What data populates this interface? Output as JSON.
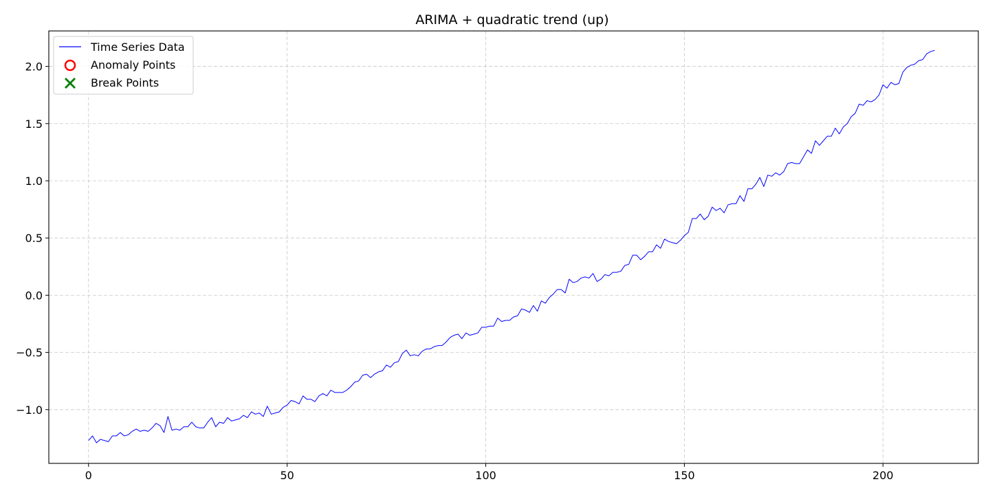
{
  "chart_data": {
    "type": "line",
    "title": "ARIMA + quadratic trend (up)",
    "xlabel": "",
    "ylabel": "",
    "xlim": [
      -10,
      224
    ],
    "ylim": [
      -1.47,
      2.31
    ],
    "x_ticks": [
      0,
      50,
      100,
      150,
      200
    ],
    "y_ticks": [
      -1.0,
      -0.5,
      0.0,
      0.5,
      1.0,
      1.5,
      2.0
    ],
    "x_tick_labels": [
      "0",
      "50",
      "100",
      "150",
      "200"
    ],
    "y_tick_labels": [
      "−1.0",
      "−0.5",
      "0.0",
      "0.5",
      "1.0",
      "1.5",
      "2.0"
    ],
    "grid": true,
    "legend_position": "top-left",
    "legend": [
      {
        "label": "Time Series Data",
        "marker": "line",
        "color": "#0000ff"
      },
      {
        "label": "Anomaly Points",
        "marker": "circle",
        "color": "#ff0000"
      },
      {
        "label": "Break Points",
        "marker": "x",
        "color": "#008000"
      }
    ],
    "series": [
      {
        "name": "Time Series Data",
        "color": "#0000ff",
        "x_start": 0,
        "x_step": 1,
        "values": [
          -1.27,
          -1.23,
          -1.29,
          -1.26,
          -1.27,
          -1.28,
          -1.23,
          -1.23,
          -1.2,
          -1.23,
          -1.22,
          -1.19,
          -1.17,
          -1.19,
          -1.18,
          -1.19,
          -1.16,
          -1.12,
          -1.14,
          -1.2,
          -1.06,
          -1.18,
          -1.17,
          -1.18,
          -1.15,
          -1.15,
          -1.11,
          -1.15,
          -1.16,
          -1.16,
          -1.11,
          -1.07,
          -1.15,
          -1.11,
          -1.12,
          -1.07,
          -1.1,
          -1.09,
          -1.08,
          -1.05,
          -1.07,
          -1.02,
          -1.04,
          -1.03,
          -1.06,
          -0.97,
          -1.04,
          -1.03,
          -1.02,
          -0.98,
          -0.96,
          -0.92,
          -0.93,
          -0.95,
          -0.88,
          -0.91,
          -0.91,
          -0.93,
          -0.88,
          -0.86,
          -0.88,
          -0.83,
          -0.85,
          -0.85,
          -0.85,
          -0.83,
          -0.8,
          -0.76,
          -0.75,
          -0.7,
          -0.69,
          -0.72,
          -0.69,
          -0.67,
          -0.66,
          -0.61,
          -0.63,
          -0.59,
          -0.58,
          -0.51,
          -0.48,
          -0.53,
          -0.52,
          -0.53,
          -0.49,
          -0.47,
          -0.47,
          -0.45,
          -0.44,
          -0.44,
          -0.41,
          -0.37,
          -0.35,
          -0.34,
          -0.38,
          -0.33,
          -0.35,
          -0.34,
          -0.33,
          -0.28,
          -0.28,
          -0.27,
          -0.27,
          -0.2,
          -0.23,
          -0.22,
          -0.22,
          -0.19,
          -0.18,
          -0.12,
          -0.13,
          -0.15,
          -0.09,
          -0.14,
          -0.05,
          -0.07,
          -0.02,
          0.01,
          0.05,
          0.05,
          0.02,
          0.14,
          0.11,
          0.12,
          0.15,
          0.16,
          0.15,
          0.19,
          0.12,
          0.14,
          0.18,
          0.17,
          0.2,
          0.2,
          0.21,
          0.26,
          0.27,
          0.35,
          0.35,
          0.31,
          0.34,
          0.38,
          0.38,
          0.44,
          0.41,
          0.49,
          0.47,
          0.46,
          0.45,
          0.48,
          0.52,
          0.55,
          0.67,
          0.67,
          0.71,
          0.66,
          0.69,
          0.77,
          0.74,
          0.76,
          0.72,
          0.79,
          0.8,
          0.8,
          0.87,
          0.82,
          0.93,
          0.93,
          0.97,
          1.03,
          0.95,
          1.05,
          1.04,
          1.07,
          1.05,
          1.08,
          1.15,
          1.16,
          1.15,
          1.15,
          1.21,
          1.27,
          1.24,
          1.35,
          1.31,
          1.35,
          1.39,
          1.39,
          1.46,
          1.41,
          1.47,
          1.5,
          1.56,
          1.59,
          1.67,
          1.66,
          1.7,
          1.69,
          1.71,
          1.75,
          1.84,
          1.81,
          1.86,
          1.84,
          1.85,
          1.95,
          1.99,
          2.01,
          2.02,
          2.05,
          2.06,
          2.11,
          2.13,
          2.14
        ]
      }
    ]
  }
}
